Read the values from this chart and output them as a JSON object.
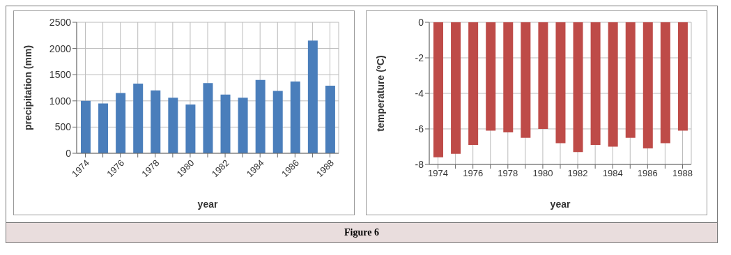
{
  "chart_data": [
    {
      "type": "bar",
      "xlabel": "year",
      "ylabel": "precipitation (mm)",
      "categories": [
        "1974",
        null,
        "1976",
        null,
        "1978",
        null,
        "1980",
        null,
        "1982",
        null,
        "1984",
        null,
        "1986",
        null,
        "1988"
      ],
      "values": [
        1000,
        950,
        1150,
        1330,
        1200,
        1060,
        930,
        1340,
        1120,
        1060,
        1400,
        1190,
        1370,
        2150,
        1290
      ],
      "color": "#4a7ebb",
      "ylim": [
        0,
        2500
      ],
      "yticks": [
        0,
        500,
        1000,
        1500,
        2000,
        2500
      ],
      "grid": true,
      "annotations": [
        "Figure 6"
      ]
    },
    {
      "type": "bar",
      "xlabel": "year",
      "ylabel": "temperature (ºC)",
      "categories": [
        "1974",
        null,
        "1976",
        null,
        "1978",
        null,
        "1980",
        null,
        "1982",
        null,
        "1984",
        null,
        "1986",
        null,
        "1988"
      ],
      "values": [
        -7.6,
        -7.4,
        -6.9,
        -6.1,
        -6.2,
        -6.5,
        -6.0,
        -6.8,
        -7.3,
        -6.9,
        -7.0,
        -6.5,
        -7.1,
        -6.8,
        -6.1
      ],
      "color": "#be4b48",
      "ylim": [
        -8,
        0
      ],
      "yticks": [
        0,
        -2,
        -4,
        -6,
        -8
      ],
      "grid": true
    }
  ]
}
